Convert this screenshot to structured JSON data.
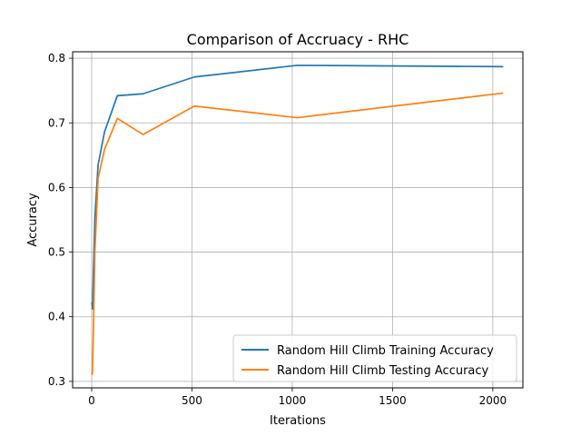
{
  "chart_data": {
    "type": "line",
    "title": "Comparison of Accruacy  - RHC",
    "xlabel": "Iterations",
    "ylabel": "Accuracy",
    "xlim": [
      -95,
      2150
    ],
    "ylim": [
      0.29,
      0.81
    ],
    "xticks": [
      0,
      500,
      1000,
      1500,
      2000
    ],
    "yticks": [
      0.3,
      0.4,
      0.5,
      0.6,
      0.7,
      0.8
    ],
    "grid": true,
    "legend_position": "lower right",
    "series": [
      {
        "name": "Random Hill Climb Training Accuracy",
        "color": "#1f77b4",
        "x": [
          1,
          2,
          4,
          8,
          16,
          32,
          64,
          128,
          256,
          512,
          1024,
          2048
        ],
        "y": [
          0.421,
          0.42,
          0.412,
          0.46,
          0.553,
          0.635,
          0.686,
          0.742,
          0.745,
          0.771,
          0.789,
          0.787
        ]
      },
      {
        "name": "Random Hill Climb Testing Accuracy",
        "color": "#ff7f0e",
        "x": [
          1,
          2,
          4,
          8,
          16,
          32,
          64,
          128,
          256,
          512,
          1024,
          2048
        ],
        "y": [
          0.312,
          0.311,
          0.315,
          0.371,
          0.5,
          0.614,
          0.659,
          0.707,
          0.682,
          0.726,
          0.708,
          0.746
        ]
      }
    ]
  }
}
